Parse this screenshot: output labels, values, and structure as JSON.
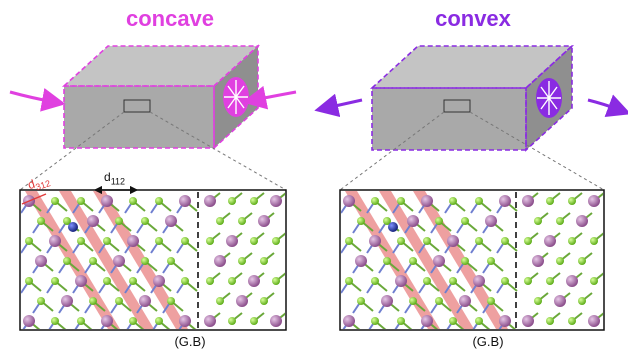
{
  "panels": [
    {
      "label": "concave",
      "label_color": "#e040e0",
      "accent": "#e040e0",
      "boundary_label": "(G.B)",
      "spacing_labels": {
        "red": "d",
        "red_sub": "312",
        "black": "d",
        "black_sub": "112"
      }
    },
    {
      "label": "convex",
      "label_color": "#8a2be2",
      "accent": "#8a2be2",
      "boundary_label": "(G.B)"
    }
  ],
  "colors": {
    "block_front": "#a9a9a9",
    "block_top": "#c4c4c4",
    "block_side": "#8f8f8f",
    "atom_green": "#8fe03a",
    "atom_pink": "#b07ab0",
    "atom_blue": "#2a3fa8",
    "plane_red": "#e88080"
  },
  "icons": [
    "arrow-in-icon",
    "arrow-out-icon",
    "crystal-lattice-icon"
  ]
}
